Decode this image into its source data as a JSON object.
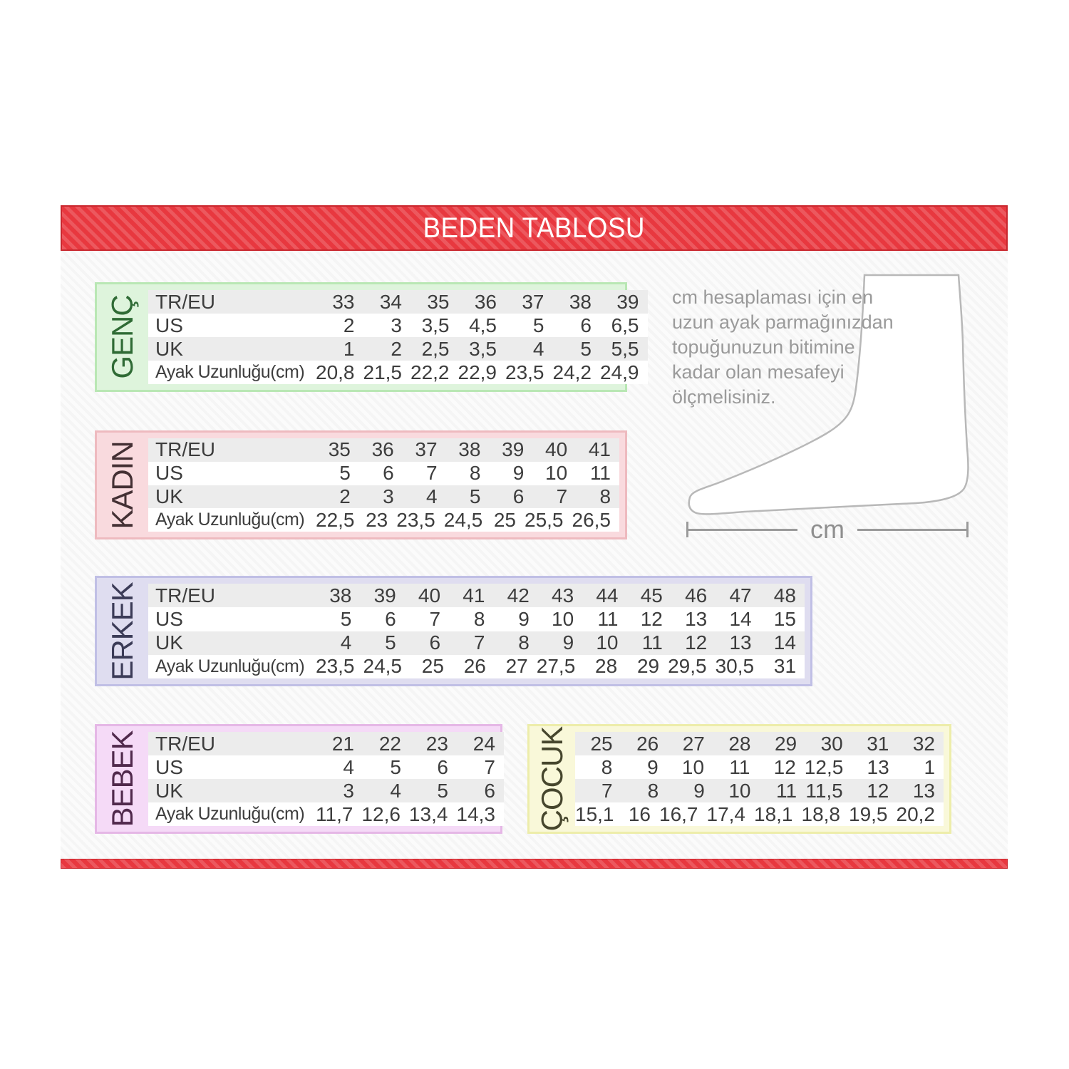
{
  "header": {
    "title": "BEDEN TABLOSU"
  },
  "row_labels": [
    "TR/EU",
    "US",
    "UK",
    "Ayak Uzunluğu(cm)"
  ],
  "tables": [
    {
      "id": "genc",
      "label": "GENÇ",
      "show_row_labels": true,
      "colors": {
        "bg": "#def4dc",
        "border": "#b9e7b4",
        "label_text": "#2f6b35"
      },
      "rows": [
        [
          "33",
          "34",
          "35",
          "36",
          "37",
          "38",
          "39"
        ],
        [
          "2",
          "3",
          "3,5",
          "4,5",
          "5",
          "6",
          "6,5"
        ],
        [
          "1",
          "2",
          "2,5",
          "3,5",
          "4",
          "5",
          "5,5"
        ],
        [
          "20,8",
          "21,5",
          "22,2",
          "22,9",
          "23,5",
          "24,2",
          "24,9"
        ]
      ]
    },
    {
      "id": "kadin",
      "label": "KADIN",
      "show_row_labels": true,
      "colors": {
        "bg": "#f9dade",
        "border": "#eebabf",
        "label_text": "#443034"
      },
      "rows": [
        [
          "35",
          "36",
          "37",
          "38",
          "39",
          "40",
          "41"
        ],
        [
          "5",
          "6",
          "7",
          "8",
          "9",
          "10",
          "11"
        ],
        [
          "2",
          "3",
          "4",
          "5",
          "6",
          "7",
          "8"
        ],
        [
          "22,5",
          "23",
          "23,5",
          "24,5",
          "25",
          "25,5",
          "26,5"
        ]
      ]
    },
    {
      "id": "erkek",
      "label": "ERKEK",
      "show_row_labels": true,
      "colors": {
        "bg": "#dfddf0",
        "border": "#c0bfe5",
        "label_text": "#3b3b57"
      },
      "rows": [
        [
          "38",
          "39",
          "40",
          "41",
          "42",
          "43",
          "44",
          "45",
          "46",
          "47",
          "48"
        ],
        [
          "5",
          "6",
          "7",
          "8",
          "9",
          "10",
          "11",
          "12",
          "13",
          "14",
          "15"
        ],
        [
          "4",
          "5",
          "6",
          "7",
          "8",
          "9",
          "10",
          "11",
          "12",
          "13",
          "14"
        ],
        [
          "23,5",
          "24,5",
          "25",
          "26",
          "27",
          "27,5",
          "28",
          "29",
          "29,5",
          "30,5",
          "31"
        ]
      ]
    },
    {
      "id": "bebek",
      "label": "BEBEK",
      "show_row_labels": true,
      "colors": {
        "bg": "#f5daf7",
        "border": "#e5b7e6",
        "label_text": "#50294c"
      },
      "rows": [
        [
          "21",
          "22",
          "23",
          "24"
        ],
        [
          "4",
          "5",
          "6",
          "7"
        ],
        [
          "3",
          "4",
          "5",
          "6"
        ],
        [
          "11,7",
          "12,6",
          "13,4",
          "14,3"
        ]
      ]
    },
    {
      "id": "cocuk",
      "label": "ÇOCUK",
      "show_row_labels": false,
      "colors": {
        "bg": "#f9f8d9",
        "border": "#ededaa",
        "label_text": "#46462d"
      },
      "rows": [
        [
          "25",
          "26",
          "27",
          "28",
          "29",
          "30",
          "31",
          "32"
        ],
        [
          "8",
          "9",
          "10",
          "11",
          "12",
          "12,5",
          "13",
          "1"
        ],
        [
          "7",
          "8",
          "9",
          "10",
          "11",
          "11,5",
          "12",
          "13"
        ],
        [
          "15,1",
          "16",
          "16,7",
          "17,4",
          "18,1",
          "18,8",
          "19,5",
          "20,2"
        ]
      ]
    }
  ],
  "instruction": {
    "text": "cm hesaplaması için en uzun ayak parmağınızdan topuğunuzun bitimine kadar olan mesafeyi ölçmelisiniz.",
    "cm_label": "cm"
  },
  "colors": {
    "banner_red": "#e8383f",
    "banner_border": "#c9272e",
    "row_stripe": "#ececec",
    "cell_text": "#3d3d3d",
    "guide_text": "#9a9a9a",
    "foot_outline": "#b8b8b8"
  }
}
